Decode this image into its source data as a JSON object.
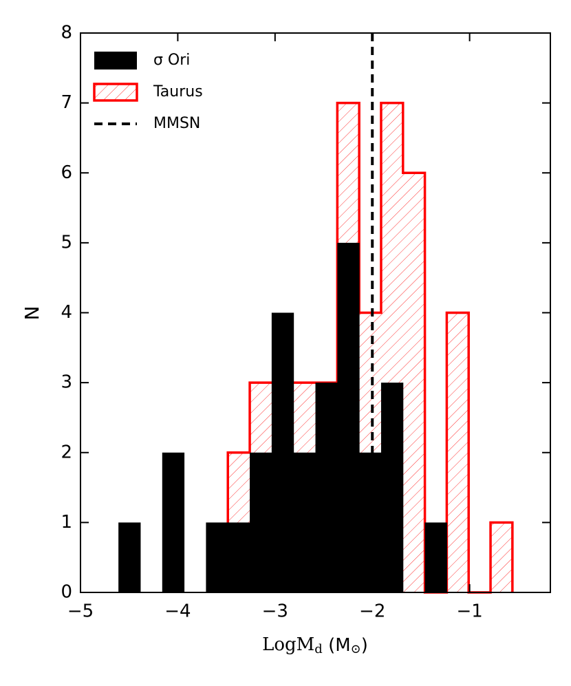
{
  "chart_data": {
    "type": "histogram",
    "x_label": [
      "LogM",
      "d",
      " (M",
      "⊙",
      ")"
    ],
    "y_label": "N",
    "xlim": [
      -5,
      -0.17
    ],
    "xticks": [
      {
        "value": -5,
        "label": "−5"
      },
      {
        "value": -4,
        "label": "−4"
      },
      {
        "value": -3,
        "label": "−3"
      },
      {
        "value": -2,
        "label": "−2"
      },
      {
        "value": -1,
        "label": "−1"
      }
    ],
    "ylim": [
      0,
      8
    ],
    "yticks": [
      0,
      1,
      2,
      3,
      4,
      5,
      6,
      7,
      8
    ],
    "legend": "upper left",
    "series": [
      {
        "name": "Taurus",
        "color": "#ff0000",
        "hatch": true,
        "bins": [
          -3.485,
          -3.26,
          -3.035,
          -2.81,
          -2.585,
          -2.36,
          -2.135,
          -1.91,
          -1.685,
          -1.46,
          -1.235,
          -1.01,
          -0.785,
          -0.56
        ],
        "values": [
          2,
          3,
          3,
          3,
          3,
          7,
          4,
          7,
          6,
          0,
          4,
          0,
          1
        ]
      },
      {
        "name": "σ Ori",
        "color": "#000000",
        "hatch": false,
        "bins": [
          -4.61,
          -4.385,
          -4.16,
          -3.935,
          -3.71,
          -3.485,
          -3.26,
          -3.035,
          -2.81,
          -2.585,
          -2.36,
          -2.135,
          -1.91,
          -1.685,
          -1.46,
          -1.235
        ],
        "values": [
          1,
          0,
          2,
          0,
          1,
          1,
          2,
          4,
          2,
          3,
          5,
          2,
          3,
          0,
          1
        ]
      }
    ],
    "vlines": [
      {
        "name": "MMSN",
        "x": -2,
        "color": "#000000",
        "style": "dashed"
      }
    ]
  }
}
